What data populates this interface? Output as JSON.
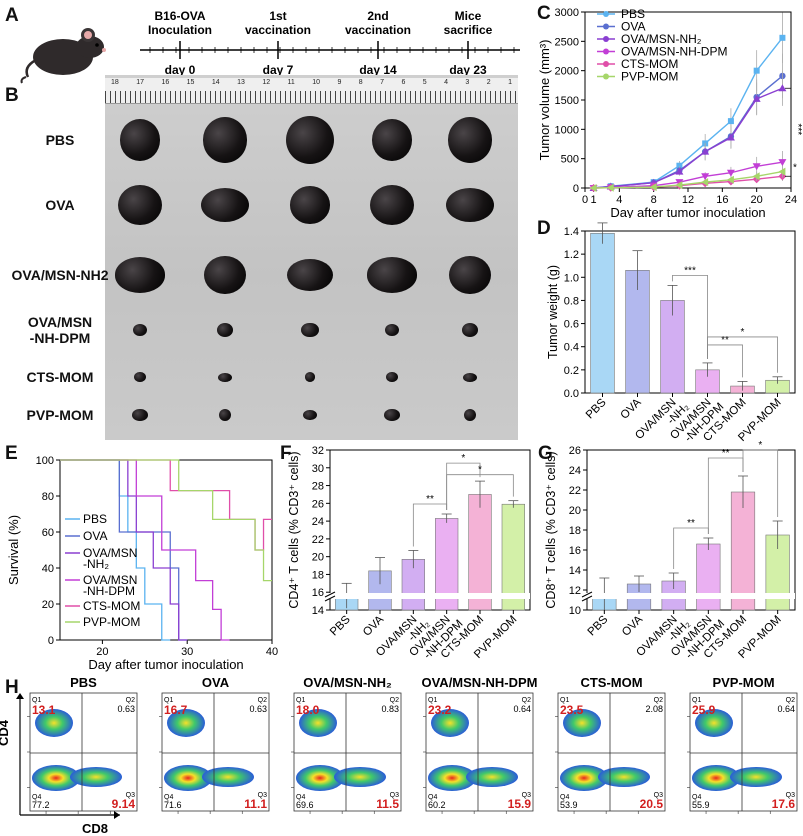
{
  "panels": {
    "A": "A",
    "B": "B",
    "C": "C",
    "D": "D",
    "E": "E",
    "F": "F",
    "G": "G",
    "H": "H"
  },
  "timeline": {
    "events": [
      {
        "label": "B16-OVA\nInoculation",
        "day": "day 0"
      },
      {
        "label": "1st\nvaccination",
        "day": "day 7"
      },
      {
        "label": "2nd\nvaccination",
        "day": "day 14"
      },
      {
        "label": "Mice\nsacrifice",
        "day": "day 23"
      }
    ]
  },
  "photo": {
    "ruler_numbers": [
      "18",
      "17",
      "16",
      "15",
      "14",
      "13",
      "12",
      "11",
      "10",
      "9",
      "8",
      "7",
      "6",
      "5",
      "4",
      "3",
      "2",
      "1"
    ],
    "groups": [
      "PBS",
      "OVA",
      "OVA/MSN-NH2",
      "OVA/MSN\n-NH-DPM",
      "CTS-MOM",
      "PVP-MOM"
    ]
  },
  "colors": {
    "PBS": "#5bb3f0",
    "OVA": "#5a6fd0",
    "OVA/MSN-NH2": "#8a3fd1",
    "OVA/MSN-NH-DPM": "#c23ed6",
    "CTS-MOM": "#e04fa9",
    "PVP-MOM": "#a6d66a",
    "bar_fill": [
      "#a9d7f5",
      "#b2b8ee",
      "#d2aef2",
      "#eab0f2",
      "#f4b2d6",
      "#d3f0a8"
    ]
  },
  "chart_data": [
    {
      "id": "C",
      "type": "line",
      "title": "",
      "xlabel": "Day after tumor inoculation",
      "ylabel": "Tumor volume (mm³)",
      "xlim": [
        0,
        24
      ],
      "ylim": [
        0,
        3000
      ],
      "xticks": [
        0,
        1,
        4,
        8,
        12,
        16,
        20,
        24
      ],
      "yticks": [
        0,
        500,
        1000,
        1500,
        2000,
        2500,
        3000
      ],
      "series": [
        {
          "name": "PBS",
          "marker": "square",
          "x": [
            1,
            3,
            8,
            11,
            14,
            17,
            20,
            23
          ],
          "y": [
            0,
            30,
            100,
            380,
            760,
            1140,
            2000,
            2560
          ],
          "err": [
            0,
            10,
            30,
            80,
            160,
            220,
            350,
            430
          ]
        },
        {
          "name": "OVA",
          "marker": "circle",
          "x": [
            1,
            3,
            8,
            11,
            14,
            17,
            20,
            23
          ],
          "y": [
            0,
            25,
            90,
            300,
            620,
            880,
            1550,
            1910
          ],
          "err": [
            0,
            10,
            30,
            70,
            150,
            200,
            300,
            380
          ]
        },
        {
          "name": "OVA/MSN-NH₂",
          "marker": "triangle-up",
          "x": [
            1,
            3,
            8,
            11,
            14,
            17,
            20,
            23
          ],
          "y": [
            0,
            25,
            90,
            280,
            620,
            860,
            1520,
            1700
          ],
          "err": [
            0,
            10,
            30,
            70,
            140,
            190,
            280,
            300
          ]
        },
        {
          "name": "OVA/MSN-NH-DPM",
          "marker": "triangle-down",
          "x": [
            1,
            3,
            8,
            11,
            14,
            17,
            20,
            23
          ],
          "y": [
            0,
            10,
            40,
            100,
            200,
            260,
            370,
            440
          ],
          "err": [
            0,
            5,
            15,
            40,
            70,
            100,
            160,
            190
          ]
        },
        {
          "name": "CTS-MOM",
          "marker": "diamond",
          "x": [
            1,
            3,
            8,
            11,
            14,
            17,
            20,
            23
          ],
          "y": [
            0,
            5,
            15,
            40,
            80,
            110,
            150,
            200
          ],
          "err": [
            0,
            3,
            8,
            20,
            35,
            50,
            60,
            80
          ]
        },
        {
          "name": "PVP-MOM",
          "marker": "triangle-left",
          "x": [
            1,
            3,
            8,
            11,
            14,
            17,
            20,
            23
          ],
          "y": [
            0,
            5,
            15,
            50,
            100,
            140,
            200,
            280
          ],
          "err": [
            0,
            3,
            8,
            20,
            40,
            60,
            80,
            100
          ]
        }
      ],
      "annotations": [
        "***",
        "*"
      ]
    },
    {
      "id": "D",
      "type": "bar",
      "xlabel": "",
      "ylabel": "Tumor weight (g)",
      "categories": [
        "PBS",
        "OVA",
        "OVA/MSN\n-NH₂",
        "OVA/MSN\n-NH-DPM",
        "CTS-MOM",
        "PVP-MOM"
      ],
      "values": [
        1.38,
        1.06,
        0.8,
        0.2,
        0.06,
        0.11
      ],
      "err": [
        0.09,
        0.17,
        0.13,
        0.06,
        0.04,
        0.03
      ],
      "ylim": [
        0,
        1.4
      ],
      "yticks": [
        0.0,
        0.2,
        0.4,
        0.6,
        0.8,
        1.0,
        1.2,
        1.4
      ],
      "sig": [
        {
          "a": 2,
          "b": 3,
          "label": "***"
        },
        {
          "a": 3,
          "b": 4,
          "label": "**"
        },
        {
          "a": 3,
          "b": 5,
          "label": "*"
        }
      ]
    },
    {
      "id": "E",
      "type": "line",
      "xlabel": "Day after tumor inoculation",
      "ylabel": "Survival (%)",
      "xlim": [
        15,
        40
      ],
      "ylim": [
        0,
        100
      ],
      "xticks": [
        20,
        30,
        40
      ],
      "yticks": [
        0,
        20,
        40,
        60,
        80,
        100
      ],
      "series": [
        {
          "name": "PBS",
          "steps": [
            [
              15,
              100
            ],
            [
              22,
              100
            ],
            [
              22,
              80
            ],
            [
              23,
              80
            ],
            [
              23,
              60
            ],
            [
              24,
              60
            ],
            [
              24,
              40
            ],
            [
              25,
              40
            ],
            [
              25,
              20
            ],
            [
              27,
              20
            ],
            [
              27,
              0
            ],
            [
              28,
              0
            ]
          ]
        },
        {
          "name": "OVA",
          "steps": [
            [
              15,
              100
            ],
            [
              22,
              100
            ],
            [
              22,
              60
            ],
            [
              28,
              60
            ],
            [
              28,
              40
            ],
            [
              29,
              40
            ],
            [
              29,
              0
            ],
            [
              30,
              0
            ]
          ]
        },
        {
          "name": "OVA/MSN\n-NH₂",
          "steps": [
            [
              15,
              100
            ],
            [
              23,
              100
            ],
            [
              23,
              80
            ],
            [
              24,
              80
            ],
            [
              24,
              60
            ],
            [
              26,
              60
            ],
            [
              26,
              40
            ],
            [
              28,
              40
            ],
            [
              28,
              20
            ],
            [
              29,
              20
            ],
            [
              29,
              0
            ],
            [
              30,
              0
            ]
          ]
        },
        {
          "name": "OVA/MSN\n-NH-DPM",
          "steps": [
            [
              15,
              100
            ],
            [
              24,
              100
            ],
            [
              24,
              80
            ],
            [
              27,
              80
            ],
            [
              27,
              50
            ],
            [
              31,
              50
            ],
            [
              31,
              33
            ],
            [
              33,
              33
            ],
            [
              33,
              17
            ],
            [
              34,
              17
            ],
            [
              34,
              0
            ],
            [
              35,
              0
            ]
          ]
        },
        {
          "name": "CTS-MOM",
          "steps": [
            [
              15,
              100
            ],
            [
              28,
              100
            ],
            [
              28,
              83
            ],
            [
              35,
              83
            ],
            [
              35,
              67
            ],
            [
              38,
              67
            ],
            [
              38,
              50
            ],
            [
              39,
              50
            ],
            [
              39,
              67
            ],
            [
              40,
              67
            ]
          ]
        },
        {
          "name": "PVP-MOM",
          "steps": [
            [
              15,
              100
            ],
            [
              29,
              100
            ],
            [
              29,
              83
            ],
            [
              33,
              83
            ],
            [
              33,
              67
            ],
            [
              38,
              67
            ],
            [
              38,
              50
            ],
            [
              39,
              50
            ],
            [
              39,
              33
            ],
            [
              40,
              33
            ]
          ]
        }
      ]
    },
    {
      "id": "F",
      "type": "bar",
      "ylabel": "CD4⁺ T cells (% CD3⁺ cells)",
      "categories": [
        "PBS",
        "OVA",
        "OVA/MSN\n-NH₂",
        "OVA/MSN\n-NH-DPM",
        "CTS-MOM",
        "PVP-MOM"
      ],
      "values": [
        15.6,
        18.4,
        19.7,
        24.3,
        27.0,
        25.9
      ],
      "err": [
        1.4,
        1.5,
        1.0,
        0.5,
        1.5,
        0.4
      ],
      "ylim": [
        14,
        32
      ],
      "yticks": [
        14,
        16,
        18,
        20,
        22,
        24,
        26,
        28,
        30,
        32
      ],
      "sig": [
        {
          "a": 2,
          "b": 3,
          "label": "**"
        },
        {
          "a": 3,
          "b": 4,
          "label": "*"
        },
        {
          "a": 3,
          "b": 5,
          "label": "*"
        }
      ]
    },
    {
      "id": "G",
      "type": "bar",
      "ylabel": "CD8⁺ T cells (% CD3⁺ cells)",
      "categories": [
        "PBS",
        "OVA",
        "OVA/MSN\n-NH₂",
        "OVA/MSN\n-NH-DPM",
        "CTS-MOM",
        "PVP-MOM"
      ],
      "values": [
        11.5,
        12.6,
        12.9,
        16.6,
        21.8,
        17.5
      ],
      "err": [
        1.7,
        0.8,
        0.8,
        0.6,
        1.6,
        1.4
      ],
      "ylim": [
        10,
        26
      ],
      "yticks": [
        10,
        12,
        14,
        16,
        18,
        20,
        22,
        24,
        26
      ],
      "sig": [
        {
          "a": 2,
          "b": 3,
          "label": "**"
        },
        {
          "a": 3,
          "b": 4,
          "label": "**"
        },
        {
          "a": 4,
          "b": 5,
          "label": "*"
        }
      ]
    }
  ],
  "flow": {
    "xaxis": "CD8",
    "yaxis": "CD4",
    "panels": [
      {
        "title": "PBS",
        "q1": "13.1",
        "q2": "0.63",
        "q3": "9.14",
        "q4": "77.2"
      },
      {
        "title": "OVA",
        "q1": "16.7",
        "q2": "0.63",
        "q3": "11.1",
        "q4": "71.6"
      },
      {
        "title": "OVA/MSN-NH₂",
        "q1": "18.0",
        "q2": "0.83",
        "q3": "11.5",
        "q4": "69.6"
      },
      {
        "title": "OVA/MSN-NH-DPM",
        "q1": "23.2",
        "q2": "0.64",
        "q3": "15.9",
        "q4": "60.2"
      },
      {
        "title": "CTS-MOM",
        "q1": "23.5",
        "q2": "2.08",
        "q3": "20.5",
        "q4": "53.9"
      },
      {
        "title": "PVP-MOM",
        "q1": "25.9",
        "q2": "0.64",
        "q3": "17.6",
        "q4": "55.9"
      }
    ]
  }
}
